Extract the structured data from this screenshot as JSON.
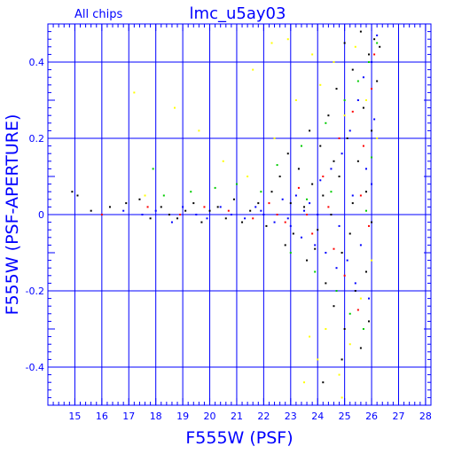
{
  "header": {
    "subset_label": "All chips",
    "title": "lmc_u5ay03"
  },
  "chart_data": {
    "type": "scatter",
    "title": "lmc_u5ay03",
    "subtitle": "All chips",
    "xlabel": "F555W (PSF)",
    "ylabel": "F555W (PSF-APERTURE)",
    "xlim": [
      14,
      28.2
    ],
    "ylim": [
      -0.5,
      0.5
    ],
    "x_ticks": [
      15,
      16,
      17,
      18,
      19,
      20,
      21,
      22,
      23,
      24,
      25,
      26,
      27,
      28
    ],
    "y_ticks": [
      -0.4,
      -0.2,
      0,
      0.2,
      0.4
    ],
    "x_tick_labels": [
      "15",
      "16",
      "17",
      "18",
      "19",
      "20",
      "21",
      "22",
      "23",
      "24",
      "25",
      "26",
      "27",
      "28"
    ],
    "y_tick_labels": [
      "-0.4",
      "-0.2",
      "0",
      "0.2",
      "0.4"
    ],
    "grid": true,
    "legend": "none",
    "colors": {
      "axes": "#0000ff",
      "grid": "#0000ff",
      "text": "#0000ff"
    },
    "series": [
      {
        "color": "#000000",
        "points": [
          [
            14.9,
            0.06
          ],
          [
            15.1,
            0.05
          ],
          [
            15.6,
            0.01
          ],
          [
            16.3,
            0.02
          ],
          [
            16.9,
            0.03
          ],
          [
            17.4,
            0.04
          ],
          [
            17.8,
            -0.01
          ],
          [
            18.2,
            0.02
          ],
          [
            18.5,
            0.0
          ],
          [
            18.8,
            -0.01
          ],
          [
            19.1,
            0.01
          ],
          [
            19.4,
            0.03
          ],
          [
            19.7,
            -0.02
          ],
          [
            20.0,
            0.01
          ],
          [
            20.3,
            0.02
          ],
          [
            20.6,
            -0.01
          ],
          [
            20.9,
            0.04
          ],
          [
            21.2,
            -0.02
          ],
          [
            21.5,
            0.01
          ],
          [
            21.8,
            0.03
          ],
          [
            22.1,
            -0.03
          ],
          [
            22.3,
            0.06
          ],
          [
            22.6,
            0.1
          ],
          [
            22.8,
            -0.08
          ],
          [
            23.0,
            0.03
          ],
          [
            23.1,
            -0.05
          ],
          [
            23.3,
            0.12
          ],
          [
            23.5,
            0.02
          ],
          [
            23.6,
            -0.12
          ],
          [
            23.8,
            0.08
          ],
          [
            24.0,
            -0.04
          ],
          [
            24.1,
            0.18
          ],
          [
            24.2,
            0.05
          ],
          [
            24.3,
            -0.18
          ],
          [
            24.4,
            0.26
          ],
          [
            24.5,
            0.0
          ],
          [
            24.6,
            -0.24
          ],
          [
            24.7,
            0.33
          ],
          [
            24.8,
            0.1
          ],
          [
            24.9,
            -0.1
          ],
          [
            25.0,
            0.45
          ],
          [
            25.0,
            -0.3
          ],
          [
            25.1,
            0.2
          ],
          [
            25.2,
            -0.05
          ],
          [
            25.3,
            0.38
          ],
          [
            25.4,
            -0.2
          ],
          [
            25.5,
            0.14
          ],
          [
            25.6,
            0.48
          ],
          [
            25.6,
            -0.35
          ],
          [
            25.7,
            0.28
          ],
          [
            25.8,
            -0.15
          ],
          [
            25.8,
            0.06
          ],
          [
            25.9,
            0.42
          ],
          [
            25.9,
            -0.28
          ],
          [
            26.0,
            0.22
          ],
          [
            26.0,
            -0.02
          ],
          [
            26.1,
            0.46
          ],
          [
            26.2,
            0.35
          ],
          [
            26.3,
            0.44
          ],
          [
            24.2,
            -0.44
          ],
          [
            23.7,
            0.22
          ],
          [
            22.9,
            0.16
          ],
          [
            24.9,
            -0.38
          ],
          [
            25.3,
            0.03
          ],
          [
            23.9,
            -0.09
          ],
          [
            24.6,
            0.14
          ]
        ]
      },
      {
        "color": "#0000ff",
        "points": [
          [
            16.8,
            0.01
          ],
          [
            17.5,
            0.0
          ],
          [
            18.0,
            0.01
          ],
          [
            18.6,
            -0.02
          ],
          [
            19.0,
            0.02
          ],
          [
            19.5,
            0.0
          ],
          [
            19.9,
            -0.01
          ],
          [
            20.4,
            0.02
          ],
          [
            20.8,
            0.0
          ],
          [
            21.3,
            -0.01
          ],
          [
            21.7,
            0.02
          ],
          [
            22.0,
            0.0
          ],
          [
            22.4,
            -0.02
          ],
          [
            22.7,
            0.04
          ],
          [
            23.0,
            -0.03
          ],
          [
            23.2,
            0.05
          ],
          [
            23.4,
            -0.06
          ],
          [
            23.7,
            0.03
          ],
          [
            23.9,
            -0.08
          ],
          [
            24.1,
            0.09
          ],
          [
            24.3,
            -0.1
          ],
          [
            24.5,
            0.12
          ],
          [
            24.7,
            -0.14
          ],
          [
            24.9,
            0.16
          ],
          [
            25.1,
            -0.12
          ],
          [
            25.2,
            0.22
          ],
          [
            25.4,
            -0.18
          ],
          [
            25.5,
            0.3
          ],
          [
            25.6,
            -0.08
          ],
          [
            25.7,
            0.36
          ],
          [
            25.8,
            0.12
          ],
          [
            25.9,
            -0.22
          ],
          [
            26.0,
            0.4
          ],
          [
            26.1,
            0.25
          ],
          [
            26.2,
            0.47
          ],
          [
            26.0,
            0.08
          ],
          [
            25.3,
            0.05
          ],
          [
            24.8,
            -0.03
          ],
          [
            24.0,
            0.0
          ],
          [
            23.5,
            0.01
          ],
          [
            22.9,
            -0.01
          ],
          [
            21.9,
            0.01
          ]
        ]
      },
      {
        "color": "#ff0000",
        "points": [
          [
            16.0,
            0.0
          ],
          [
            17.7,
            0.02
          ],
          [
            18.9,
            0.0
          ],
          [
            19.8,
            0.02
          ],
          [
            20.7,
            0.01
          ],
          [
            21.6,
            -0.01
          ],
          [
            22.2,
            0.03
          ],
          [
            22.8,
            -0.02
          ],
          [
            23.3,
            0.07
          ],
          [
            23.8,
            -0.05
          ],
          [
            24.2,
            0.1
          ],
          [
            24.6,
            -0.09
          ],
          [
            24.8,
            0.2
          ],
          [
            25.0,
            -0.16
          ],
          [
            25.3,
            0.27
          ],
          [
            25.5,
            -0.25
          ],
          [
            25.7,
            0.18
          ],
          [
            25.9,
            -0.03
          ],
          [
            26.0,
            0.33
          ],
          [
            26.1,
            0.42
          ],
          [
            25.6,
            0.05
          ],
          [
            24.4,
            0.02
          ],
          [
            23.6,
            0.0
          ],
          [
            22.5,
            0.0
          ]
        ]
      },
      {
        "color": "#00cc00",
        "points": [
          [
            17.9,
            0.12
          ],
          [
            18.3,
            0.05
          ],
          [
            19.3,
            0.06
          ],
          [
            20.2,
            0.07
          ],
          [
            21.0,
            0.08
          ],
          [
            21.9,
            0.06
          ],
          [
            22.5,
            0.13
          ],
          [
            23.0,
            -0.1
          ],
          [
            23.4,
            0.18
          ],
          [
            23.9,
            -0.15
          ],
          [
            24.3,
            0.24
          ],
          [
            24.7,
            -0.2
          ],
          [
            25.0,
            0.3
          ],
          [
            25.2,
            -0.26
          ],
          [
            25.5,
            0.35
          ],
          [
            25.7,
            -0.3
          ],
          [
            25.9,
            0.4
          ],
          [
            26.0,
            0.15
          ],
          [
            26.2,
            0.45
          ],
          [
            25.8,
            0.01
          ],
          [
            24.5,
            0.06
          ],
          [
            23.6,
            0.04
          ]
        ]
      },
      {
        "color": "#ffff00",
        "points": [
          [
            17.2,
            0.32
          ],
          [
            17.6,
            0.05
          ],
          [
            18.7,
            0.28
          ],
          [
            19.6,
            0.22
          ],
          [
            20.5,
            0.14
          ],
          [
            21.4,
            0.1
          ],
          [
            21.6,
            0.38
          ],
          [
            22.3,
            0.45
          ],
          [
            22.4,
            0.2
          ],
          [
            22.9,
            0.46
          ],
          [
            23.2,
            0.3
          ],
          [
            23.5,
            -0.44
          ],
          [
            23.8,
            0.42
          ],
          [
            24.0,
            -0.38
          ],
          [
            24.1,
            0.34
          ],
          [
            24.3,
            -0.3
          ],
          [
            24.6,
            0.4
          ],
          [
            24.8,
            -0.42
          ],
          [
            25.0,
            0.26
          ],
          [
            25.2,
            -0.34
          ],
          [
            25.4,
            0.44
          ],
          [
            25.6,
            -0.22
          ],
          [
            25.8,
            0.3
          ],
          [
            26.0,
            -0.12
          ],
          [
            26.2,
            0.2
          ],
          [
            23.7,
            -0.32
          ],
          [
            24.9,
            -0.48
          ]
        ]
      }
    ]
  }
}
